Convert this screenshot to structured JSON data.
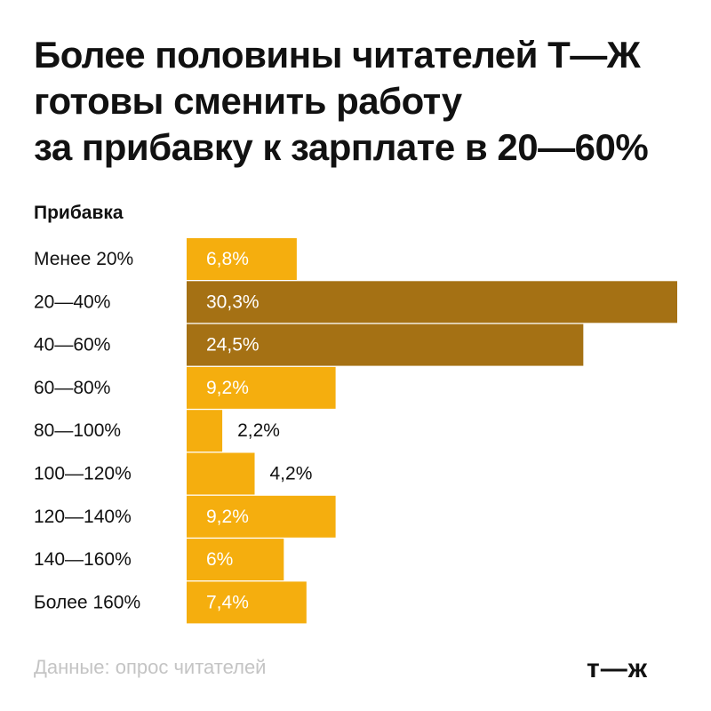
{
  "title_lines": [
    "Более половины читателей Т—Ж",
    "готовы сменить работу",
    "за прибавку к зарплате в 20—60%"
  ],
  "chart_data": {
    "type": "bar",
    "orientation": "horizontal",
    "category_axis_title": "Прибавка",
    "categories": [
      "Менее 20%",
      "20—40%",
      "40—60%",
      "60—80%",
      "80—100%",
      "100—120%",
      "120—140%",
      "140—160%",
      "Более 160%"
    ],
    "values": [
      6.8,
      30.3,
      24.5,
      9.2,
      2.2,
      4.2,
      9.2,
      6,
      7.4
    ],
    "value_labels": [
      "6,8%",
      "30,3%",
      "24,5%",
      "9,2%",
      "2,2%",
      "4,2%",
      "9,2%",
      "6%",
      "7,4%"
    ],
    "highlighted": [
      false,
      true,
      true,
      false,
      false,
      false,
      false,
      false,
      false
    ],
    "xlim": [
      0,
      30.3
    ],
    "colors": {
      "bar": "#F5AE0E",
      "highlight": "#A57114",
      "label_on_bar": "#ffffff",
      "label_outside": "#111111"
    }
  },
  "footer": {
    "source": "Данные: опрос читателей",
    "logo": "т—ж"
  }
}
